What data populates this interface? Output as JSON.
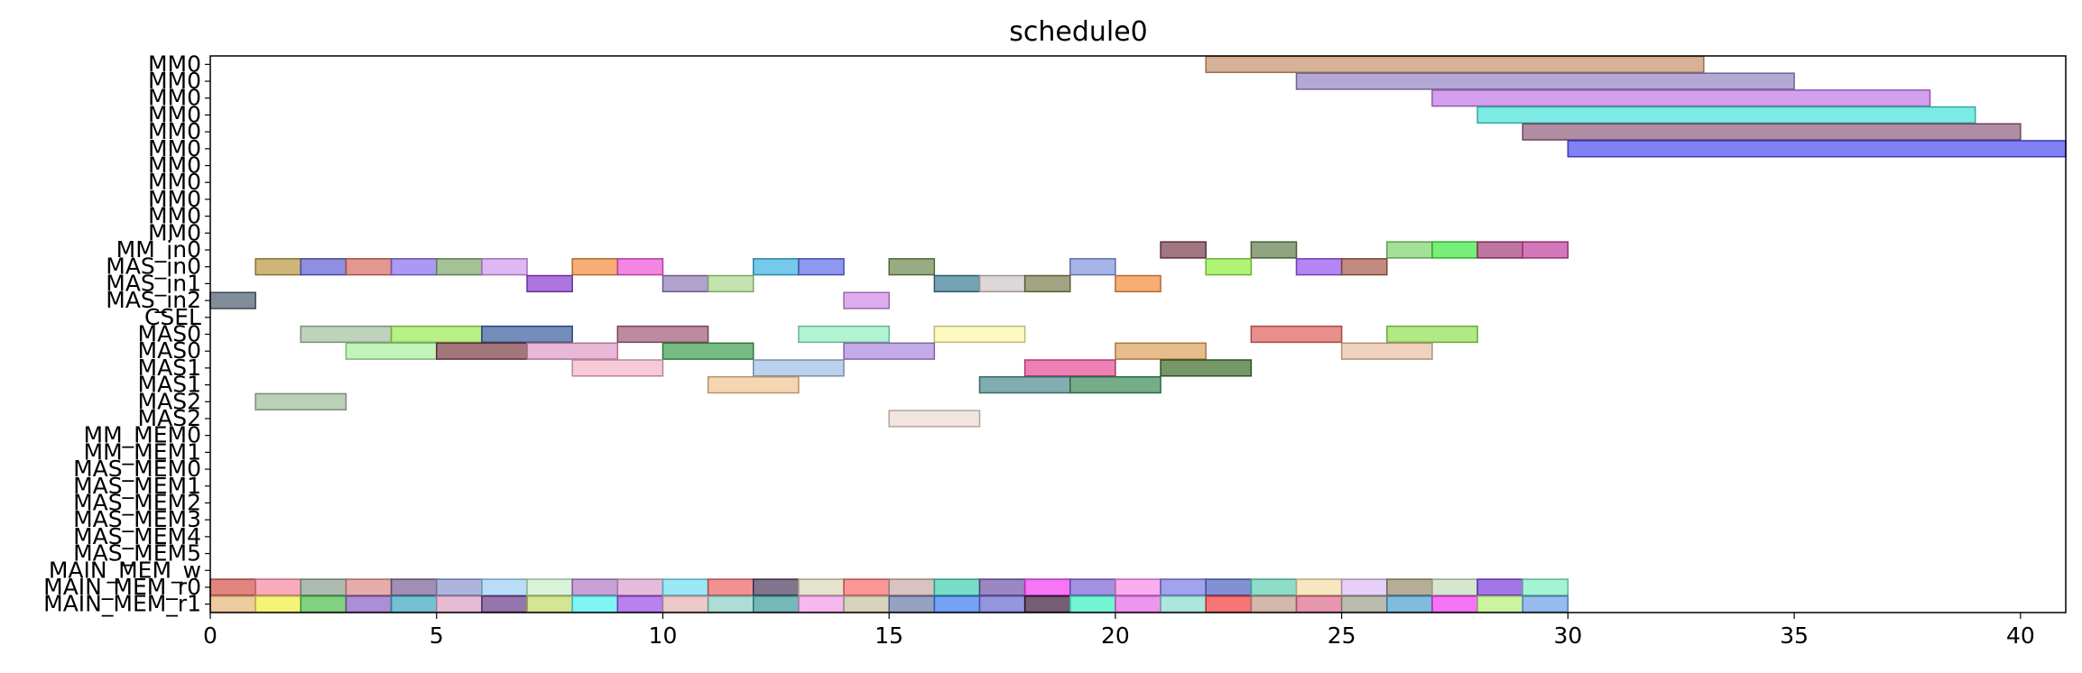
{
  "chart_data": {
    "type": "gantt",
    "title": "schedule0",
    "xlabel": "",
    "ylabel": "",
    "xlim": [
      0,
      41
    ],
    "x_ticks": [
      0,
      5,
      10,
      15,
      20,
      25,
      30,
      35,
      40
    ],
    "grid": false,
    "legend": "none",
    "rows": [
      "MM0",
      "MM0",
      "MM0",
      "MM0",
      "MM0",
      "MM0",
      "MM0",
      "MM0",
      "MM0",
      "MM0",
      "MM0",
      "MM_in0",
      "MAS_in0",
      "MAS_in1",
      "MAS_in2",
      "CSEL",
      "MAS0",
      "MAS0",
      "MAS1",
      "MAS1",
      "MAS2",
      "MAS2",
      "MM_MEM0",
      "MM_MEM1",
      "MAS_MEM0",
      "MAS_MEM1",
      "MAS_MEM2",
      "MAS_MEM3",
      "MAS_MEM4",
      "MAS_MEM5",
      "MAIN_MEM_w",
      "MAIN_MEM_r0",
      "MAIN_MEM_r1"
    ],
    "tasks": [
      {
        "row": 0,
        "start": 22,
        "end": 33,
        "color": "#c8926a"
      },
      {
        "row": 1,
        "start": 24,
        "end": 35,
        "color": "#9385c2"
      },
      {
        "row": 2,
        "start": 27,
        "end": 38,
        "color": "#c077e6"
      },
      {
        "row": 3,
        "start": 28,
        "end": 39,
        "color": "#43e3d9"
      },
      {
        "row": 4,
        "start": 29,
        "end": 40,
        "color": "#8e5c7c"
      },
      {
        "row": 5,
        "start": 30,
        "end": 41,
        "color": "#4b4bf0"
      },
      {
        "row": 11,
        "start": 21,
        "end": 22,
        "color": "#7a3d4f"
      },
      {
        "row": 11,
        "start": 23,
        "end": 24,
        "color": "#5f7d4b"
      },
      {
        "row": 11,
        "start": 26,
        "end": 27,
        "color": "#7fd36b"
      },
      {
        "row": 11,
        "start": 27,
        "end": 28,
        "color": "#3ee83e"
      },
      {
        "row": 11,
        "start": 28,
        "end": 29,
        "color": "#a33b78"
      },
      {
        "row": 11,
        "start": 29,
        "end": 30,
        "color": "#c0409c"
      },
      {
        "row": 12,
        "start": 1,
        "end": 2,
        "color": "#b8973d"
      },
      {
        "row": 12,
        "start": 2,
        "end": 3,
        "color": "#5f5fd6"
      },
      {
        "row": 12,
        "start": 3,
        "end": 4,
        "color": "#d96a61"
      },
      {
        "row": 12,
        "start": 4,
        "end": 5,
        "color": "#8a6ef0"
      },
      {
        "row": 12,
        "start": 5,
        "end": 6,
        "color": "#7ea86a"
      },
      {
        "row": 12,
        "start": 6,
        "end": 7,
        "color": "#d199ee"
      },
      {
        "row": 12,
        "start": 8,
        "end": 9,
        "color": "#f28a3c"
      },
      {
        "row": 12,
        "start": 9,
        "end": 10,
        "color": "#ee52d5"
      },
      {
        "row": 12,
        "start": 12,
        "end": 13,
        "color": "#3bb3e0"
      },
      {
        "row": 12,
        "start": 13,
        "end": 14,
        "color": "#5e6ce8"
      },
      {
        "row": 12,
        "start": 15,
        "end": 16,
        "color": "#6b8a4b"
      },
      {
        "row": 12,
        "start": 19,
        "end": 20,
        "color": "#8294dd"
      },
      {
        "row": 12,
        "start": 22,
        "end": 23,
        "color": "#8ff03c"
      },
      {
        "row": 12,
        "start": 24,
        "end": 25,
        "color": "#9453f0"
      },
      {
        "row": 12,
        "start": 25,
        "end": 26,
        "color": "#a65a4b"
      },
      {
        "row": 13,
        "start": 7,
        "end": 8,
        "color": "#8c3bd1"
      },
      {
        "row": 13,
        "start": 10,
        "end": 11,
        "color": "#8f7ab8"
      },
      {
        "row": 13,
        "start": 11,
        "end": 12,
        "color": "#aad98c"
      },
      {
        "row": 13,
        "start": 16,
        "end": 17,
        "color": "#3a7a93"
      },
      {
        "row": 13,
        "start": 17,
        "end": 18,
        "color": "#cfc6c6"
      },
      {
        "row": 13,
        "start": 18,
        "end": 19,
        "color": "#7a7d4b"
      },
      {
        "row": 13,
        "start": 20,
        "end": 21,
        "color": "#f28c3c"
      },
      {
        "row": 14,
        "start": 0,
        "end": 1,
        "color": "#4b5e6e"
      },
      {
        "row": 14,
        "start": 14,
        "end": 15,
        "color": "#d08ae6"
      },
      {
        "row": 16,
        "start": 2,
        "end": 4,
        "color": "#a3bfa0"
      },
      {
        "row": 16,
        "start": 4,
        "end": 6,
        "color": "#9ae854"
      },
      {
        "row": 16,
        "start": 6,
        "end": 8,
        "color": "#3a5c9e"
      },
      {
        "row": 16,
        "start": 9,
        "end": 11,
        "color": "#a05a78"
      },
      {
        "row": 16,
        "start": 13,
        "end": 15,
        "color": "#8ef0c0"
      },
      {
        "row": 16,
        "start": 16,
        "end": 18,
        "color": "#fdf5a6"
      },
      {
        "row": 16,
        "start": 23,
        "end": 25,
        "color": "#e0605a"
      },
      {
        "row": 16,
        "start": 26,
        "end": 28,
        "color": "#90e050"
      },
      {
        "row": 17,
        "start": 3,
        "end": 5,
        "color": "#a9ef9e"
      },
      {
        "row": 17,
        "start": 5,
        "end": 7,
        "color": "#7a3d44"
      },
      {
        "row": 17,
        "start": 7,
        "end": 9,
        "color": "#e09ac5"
      },
      {
        "row": 17,
        "start": 10,
        "end": 12,
        "color": "#3f9e50"
      },
      {
        "row": 17,
        "start": 14,
        "end": 16,
        "color": "#a988dd"
      },
      {
        "row": 17,
        "start": 20,
        "end": 22,
        "color": "#e0a05a"
      },
      {
        "row": 17,
        "start": 25,
        "end": 27,
        "color": "#e8c0a3"
      },
      {
        "row": 18,
        "start": 8,
        "end": 10,
        "color": "#f2b4c6"
      },
      {
        "row": 18,
        "start": 12,
        "end": 14,
        "color": "#9fbde5"
      },
      {
        "row": 18,
        "start": 18,
        "end": 20,
        "color": "#e54c94"
      },
      {
        "row": 18,
        "start": 21,
        "end": 23,
        "color": "#3d6b2a"
      },
      {
        "row": 19,
        "start": 11,
        "end": 13,
        "color": "#f0c490"
      },
      {
        "row": 19,
        "start": 17,
        "end": 19,
        "color": "#4b8a8e"
      },
      {
        "row": 19,
        "start": 19,
        "end": 21,
        "color": "#3a8a5a"
      },
      {
        "row": 20,
        "start": 1,
        "end": 3,
        "color": "#a0bc9a"
      },
      {
        "row": 21,
        "start": 15,
        "end": 17,
        "color": "#ecd8d0"
      },
      {
        "row": 31,
        "start": 0,
        "end": 1,
        "color": "#d4504a"
      },
      {
        "row": 31,
        "start": 1,
        "end": 2,
        "color": "#f889a0"
      },
      {
        "row": 31,
        "start": 2,
        "end": 3,
        "color": "#8aa090"
      },
      {
        "row": 31,
        "start": 3,
        "end": 4,
        "color": "#dc8a8a"
      },
      {
        "row": 31,
        "start": 4,
        "end": 5,
        "color": "#7a5e96"
      },
      {
        "row": 31,
        "start": 5,
        "end": 6,
        "color": "#8a96cf"
      },
      {
        "row": 31,
        "start": 6,
        "end": 7,
        "color": "#9bcff2"
      },
      {
        "row": 31,
        "start": 7,
        "end": 8,
        "color": "#c9eecb"
      },
      {
        "row": 31,
        "start": 8,
        "end": 9,
        "color": "#b07ac2"
      },
      {
        "row": 31,
        "start": 9,
        "end": 10,
        "color": "#dca0cf"
      },
      {
        "row": 31,
        "start": 10,
        "end": 11,
        "color": "#6fdff0"
      },
      {
        "row": 31,
        "start": 11,
        "end": 12,
        "color": "#ec6262"
      },
      {
        "row": 31,
        "start": 12,
        "end": 13,
        "color": "#4b3b5e"
      },
      {
        "row": 31,
        "start": 13,
        "end": 14,
        "color": "#d9d9b9"
      },
      {
        "row": 31,
        "start": 14,
        "end": 15,
        "color": "#f86a6a"
      },
      {
        "row": 31,
        "start": 15,
        "end": 16,
        "color": "#c8a8a8"
      },
      {
        "row": 31,
        "start": 16,
        "end": 17,
        "color": "#3dcfaf"
      },
      {
        "row": 31,
        "start": 17,
        "end": 18,
        "color": "#7055a8"
      },
      {
        "row": 31,
        "start": 18,
        "end": 19,
        "color": "#f23cf2"
      },
      {
        "row": 31,
        "start": 19,
        "end": 20,
        "color": "#7c62d6"
      },
      {
        "row": 31,
        "start": 20,
        "end": 21,
        "color": "#f88ae8"
      },
      {
        "row": 31,
        "start": 21,
        "end": 22,
        "color": "#7a7ae8"
      },
      {
        "row": 31,
        "start": 22,
        "end": 23,
        "color": "#4b62c2"
      },
      {
        "row": 31,
        "start": 23,
        "end": 24,
        "color": "#5ecfb0"
      },
      {
        "row": 31,
        "start": 24,
        "end": 25,
        "color": "#f5dca3"
      },
      {
        "row": 31,
        "start": 25,
        "end": 26,
        "color": "#dcbcf5"
      },
      {
        "row": 31,
        "start": 26,
        "end": 27,
        "color": "#968a6a"
      },
      {
        "row": 31,
        "start": 27,
        "end": 28,
        "color": "#c6dcbc"
      },
      {
        "row": 31,
        "start": 28,
        "end": 29,
        "color": "#7a3cdc"
      },
      {
        "row": 31,
        "start": 29,
        "end": 30,
        "color": "#7af0c2"
      },
      {
        "row": 32,
        "start": 0,
        "end": 1,
        "color": "#e6b478"
      },
      {
        "row": 32,
        "start": 1,
        "end": 2,
        "color": "#f0f040"
      },
      {
        "row": 32,
        "start": 2,
        "end": 3,
        "color": "#4bbf4b"
      },
      {
        "row": 32,
        "start": 3,
        "end": 4,
        "color": "#8a5ec2"
      },
      {
        "row": 32,
        "start": 4,
        "end": 5,
        "color": "#3aa6c0"
      },
      {
        "row": 32,
        "start": 5,
        "end": 6,
        "color": "#dca0c2"
      },
      {
        "row": 32,
        "start": 6,
        "end": 7,
        "color": "#6a3a8a"
      },
      {
        "row": 32,
        "start": 7,
        "end": 8,
        "color": "#c2dc6a"
      },
      {
        "row": 32,
        "start": 8,
        "end": 9,
        "color": "#4bf0f0"
      },
      {
        "row": 32,
        "start": 9,
        "end": 10,
        "color": "#9a4be8"
      },
      {
        "row": 32,
        "start": 10,
        "end": 11,
        "color": "#e6b4b4"
      },
      {
        "row": 32,
        "start": 11,
        "end": 12,
        "color": "#8acfc2"
      },
      {
        "row": 32,
        "start": 12,
        "end": 13,
        "color": "#3a9a9a"
      },
      {
        "row": 32,
        "start": 13,
        "end": 14,
        "color": "#f29ae6"
      },
      {
        "row": 32,
        "start": 14,
        "end": 15,
        "color": "#c6c0a0"
      },
      {
        "row": 32,
        "start": 15,
        "end": 16,
        "color": "#6a7aa8"
      },
      {
        "row": 32,
        "start": 16,
        "end": 17,
        "color": "#3a7af0"
      },
      {
        "row": 32,
        "start": 17,
        "end": 18,
        "color": "#6a6acf"
      },
      {
        "row": 32,
        "start": 18,
        "end": 19,
        "color": "#3a1a3a"
      },
      {
        "row": 32,
        "start": 19,
        "end": 20,
        "color": "#3af0c2"
      },
      {
        "row": 32,
        "start": 20,
        "end": 21,
        "color": "#e66ae6"
      },
      {
        "row": 32,
        "start": 21,
        "end": 22,
        "color": "#8adccf"
      },
      {
        "row": 32,
        "start": 22,
        "end": 23,
        "color": "#f23a3a"
      },
      {
        "row": 32,
        "start": 23,
        "end": 24,
        "color": "#c29a8a"
      },
      {
        "row": 32,
        "start": 24,
        "end": 25,
        "color": "#dc6a8a"
      },
      {
        "row": 32,
        "start": 25,
        "end": 26,
        "color": "#a0a08a"
      },
      {
        "row": 32,
        "start": 26,
        "end": 27,
        "color": "#4ba0cf"
      },
      {
        "row": 32,
        "start": 27,
        "end": 28,
        "color": "#f23af0"
      },
      {
        "row": 32,
        "start": 28,
        "end": 29,
        "color": "#b4f07a"
      },
      {
        "row": 32,
        "start": 29,
        "end": 30,
        "color": "#6aa0e6"
      }
    ]
  }
}
